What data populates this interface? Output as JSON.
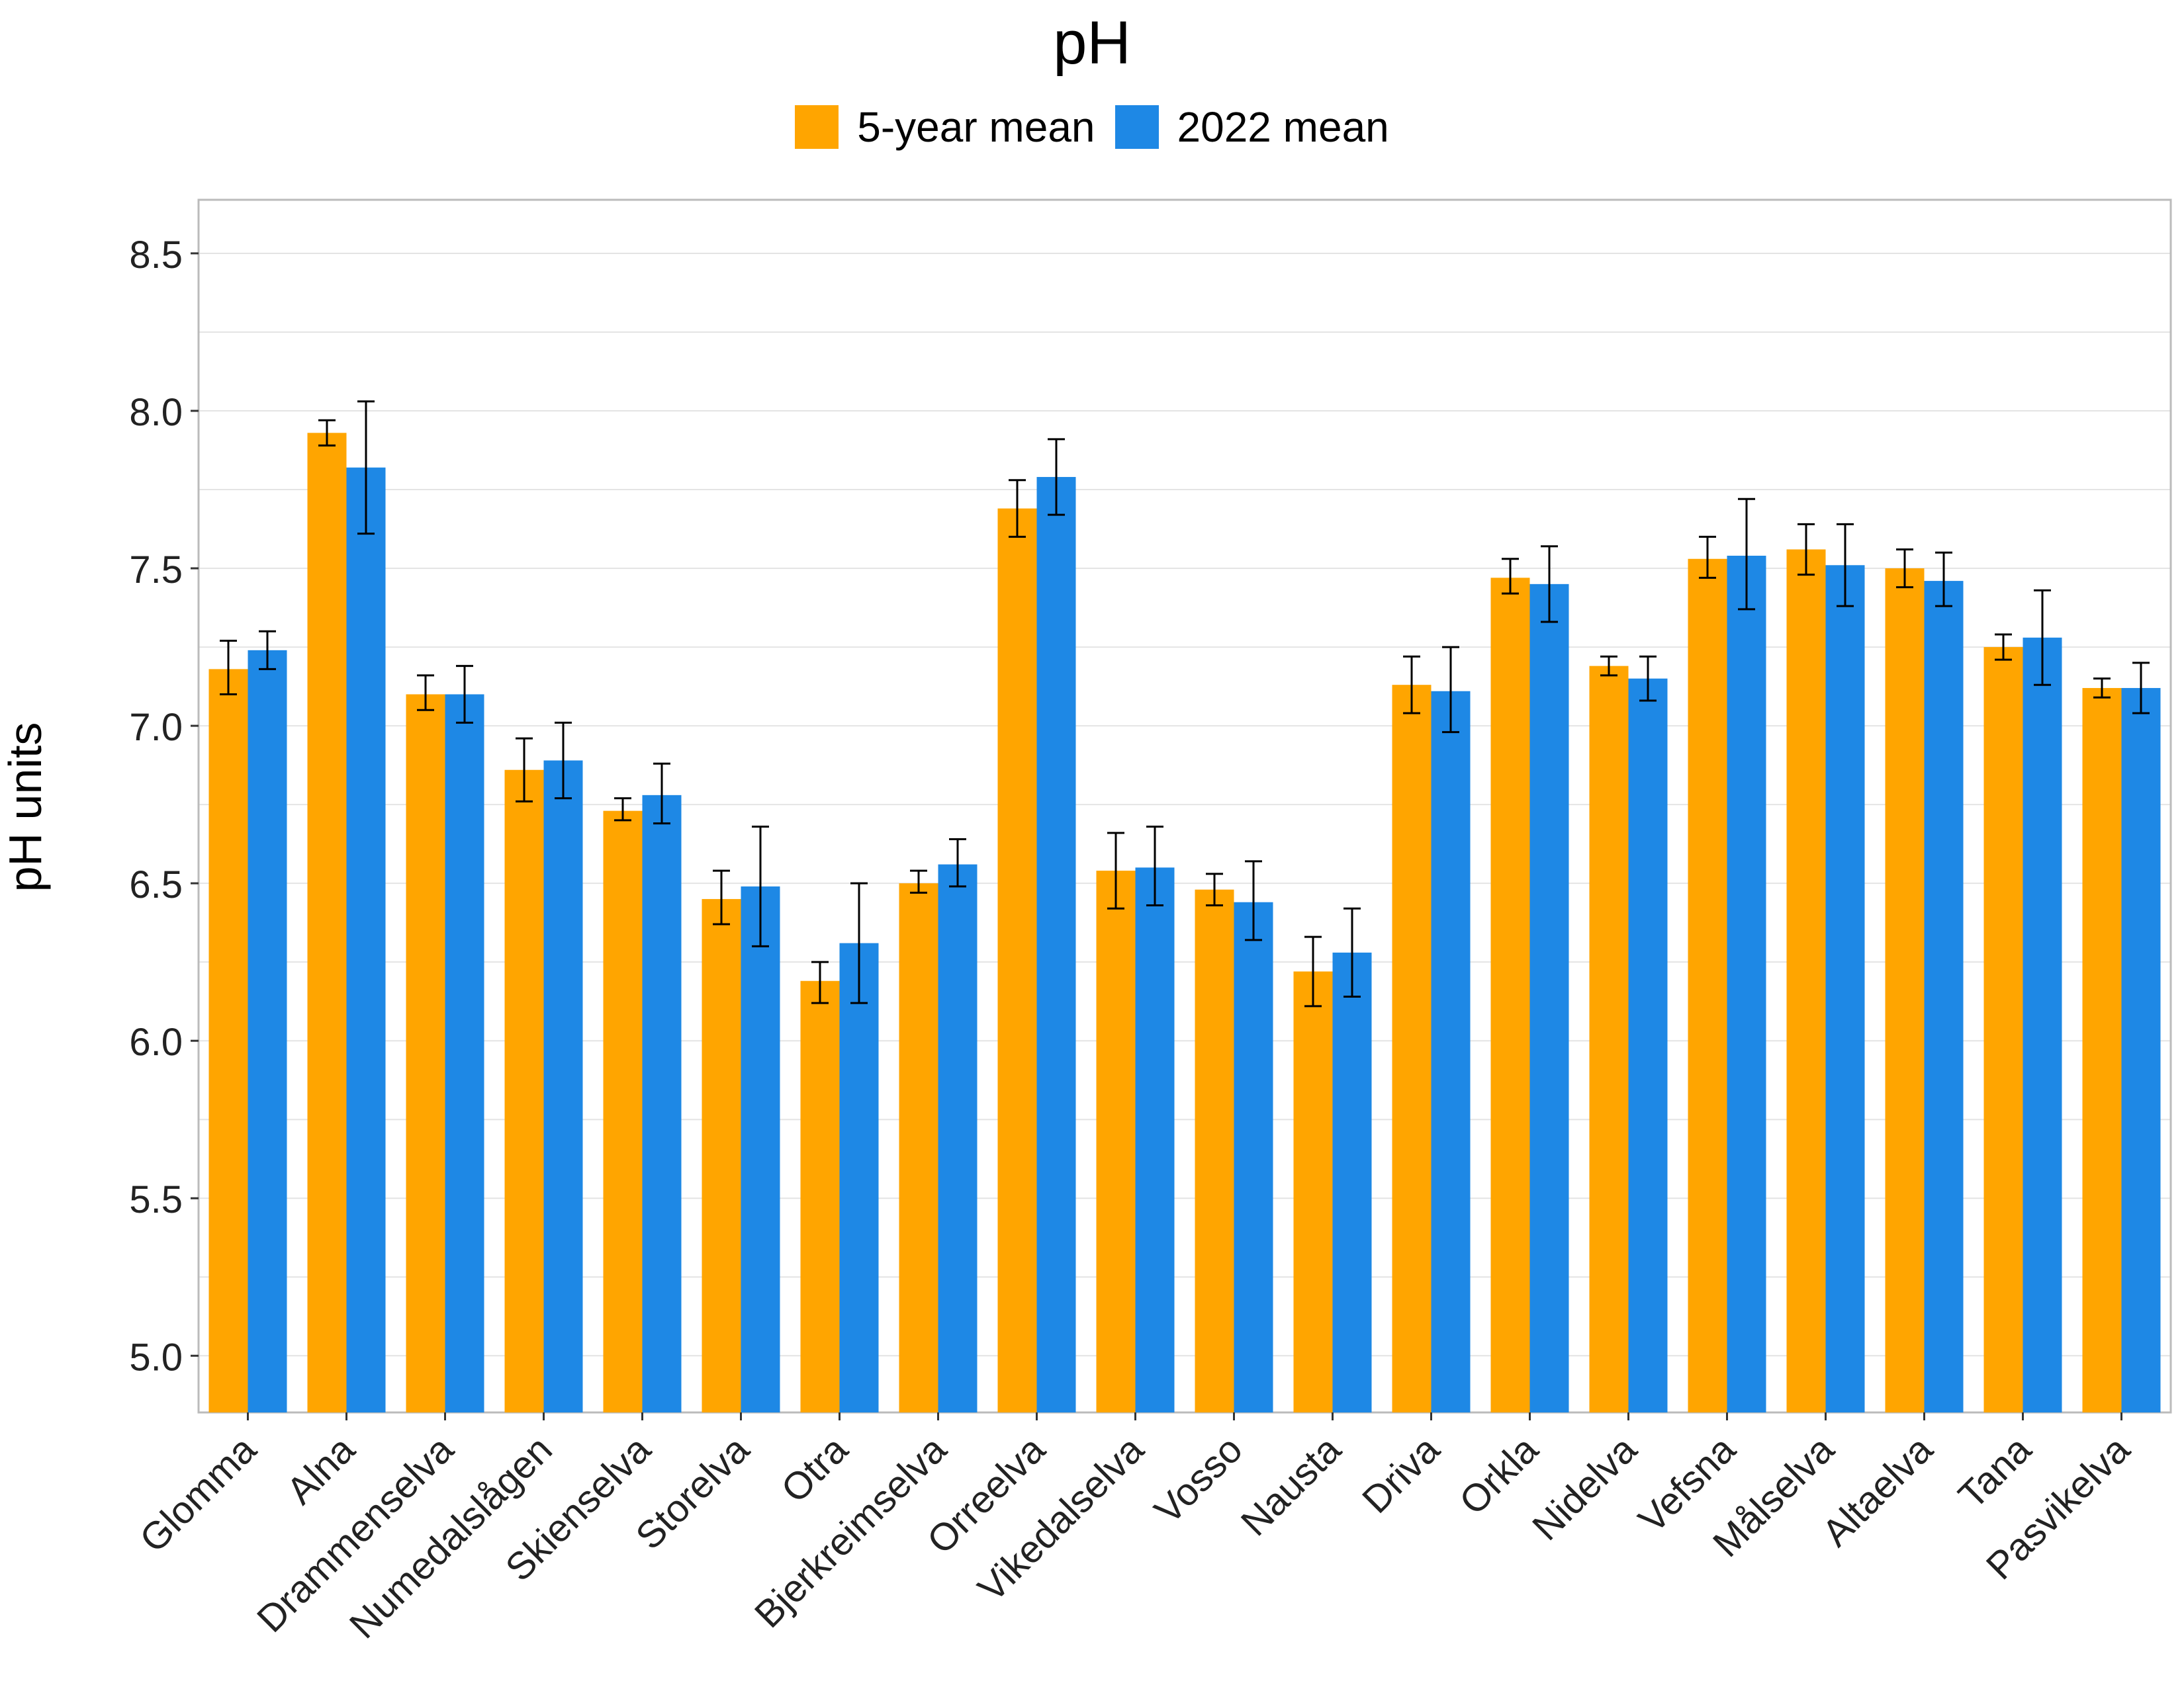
{
  "colors": {
    "five_year": "#FFA500",
    "y2022": "#1E88E5",
    "grid": "#e4e4e4",
    "panel_border": "#bbbbbb",
    "error_bar": "#000000"
  },
  "chart_data": {
    "type": "bar",
    "title": "pH",
    "xlabel": "",
    "ylabel": "pH units",
    "ylim": [
      4.82,
      8.67
    ],
    "yticks": [
      "5.0",
      "5.5",
      "6.0",
      "6.5",
      "7.0",
      "7.5",
      "8.0",
      "8.5"
    ],
    "grid": true,
    "legend_position": "top",
    "categories": [
      "Glomma",
      "Alna",
      "Drammenselva",
      "Numedalslågen",
      "Skienselva",
      "Storelva",
      "Otra",
      "Bjerkreimselva",
      "Orreelva",
      "Vikedalselva",
      "Vosso",
      "Nausta",
      "Driva",
      "Orkla",
      "Nidelva",
      "Vefsna",
      "Målselva",
      "Altaelva",
      "Tana",
      "Pasvikelva"
    ],
    "series": [
      {
        "name": "5-year mean",
        "values": [
          7.18,
          7.93,
          7.1,
          6.86,
          6.73,
          6.45,
          6.19,
          6.5,
          7.69,
          6.54,
          6.48,
          6.22,
          7.13,
          7.47,
          7.19,
          7.53,
          7.56,
          7.5,
          7.25,
          7.12
        ],
        "err_low": [
          7.1,
          7.89,
          7.05,
          6.76,
          6.7,
          6.37,
          6.12,
          6.47,
          7.6,
          6.42,
          6.43,
          6.11,
          7.04,
          7.42,
          7.16,
          7.47,
          7.48,
          7.44,
          7.21,
          7.09
        ],
        "err_high": [
          7.27,
          7.97,
          7.16,
          6.96,
          6.77,
          6.54,
          6.25,
          6.54,
          7.78,
          6.66,
          6.53,
          6.33,
          7.22,
          7.53,
          7.22,
          7.6,
          7.64,
          7.56,
          7.29,
          7.15
        ]
      },
      {
        "name": "2022 mean",
        "values": [
          7.24,
          7.82,
          7.1,
          6.89,
          6.78,
          6.49,
          6.31,
          6.56,
          7.79,
          6.55,
          6.44,
          6.28,
          7.11,
          7.45,
          7.15,
          7.54,
          7.51,
          7.46,
          7.28,
          7.12
        ],
        "err_low": [
          7.18,
          7.61,
          7.01,
          6.77,
          6.69,
          6.3,
          6.12,
          6.49,
          7.67,
          6.43,
          6.32,
          6.14,
          6.98,
          7.33,
          7.08,
          7.37,
          7.38,
          7.38,
          7.13,
          7.04
        ],
        "err_high": [
          7.3,
          8.03,
          7.19,
          7.01,
          6.88,
          6.68,
          6.5,
          6.64,
          7.91,
          6.68,
          6.57,
          6.42,
          7.25,
          7.57,
          7.22,
          7.72,
          7.64,
          7.55,
          7.43,
          7.2
        ]
      }
    ]
  }
}
